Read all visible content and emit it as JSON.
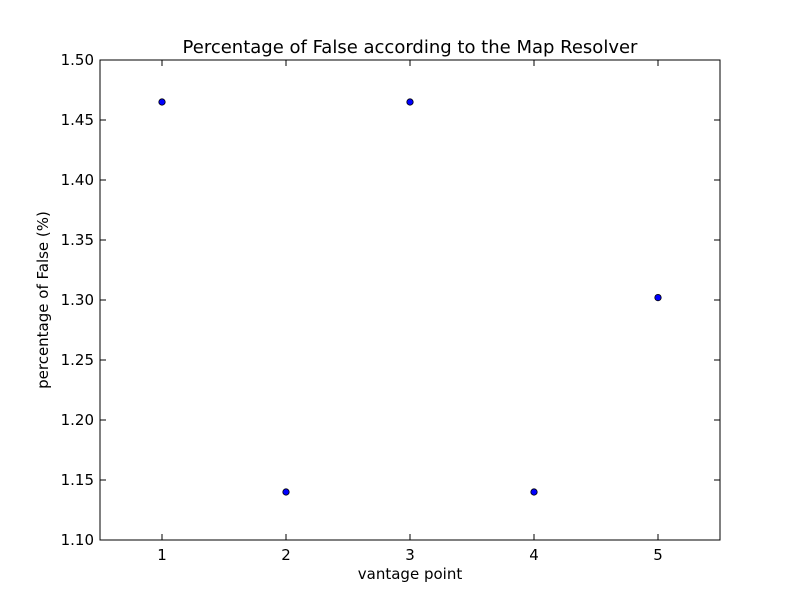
{
  "chart_data": {
    "type": "scatter",
    "title": "Percentage of False according to the Map Resolver",
    "xlabel": "vantage point",
    "ylabel": "percentage of False (%)",
    "xlim": [
      0.5,
      5.5
    ],
    "ylim": [
      1.1,
      1.5
    ],
    "xticks": [
      1,
      2,
      3,
      4,
      5
    ],
    "xtick_labels": [
      "1",
      "2",
      "3",
      "4",
      "5"
    ],
    "yticks": [
      1.1,
      1.15,
      1.2,
      1.25,
      1.3,
      1.35,
      1.4,
      1.45,
      1.5
    ],
    "ytick_labels": [
      "1.10",
      "1.15",
      "1.20",
      "1.25",
      "1.30",
      "1.35",
      "1.40",
      "1.45",
      "1.50"
    ],
    "grid": false,
    "marker_color": "#0000ff",
    "points": [
      {
        "x": 1,
        "y": 1.465
      },
      {
        "x": 2,
        "y": 1.14
      },
      {
        "x": 3,
        "y": 1.465
      },
      {
        "x": 4,
        "y": 1.14
      },
      {
        "x": 5,
        "y": 1.302
      }
    ]
  }
}
